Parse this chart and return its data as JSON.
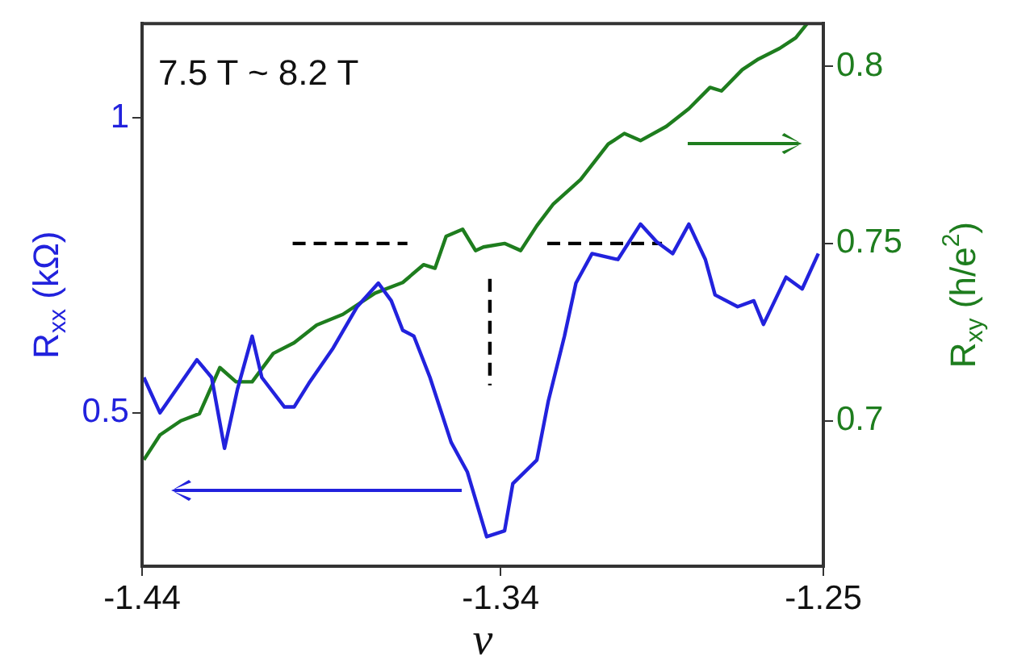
{
  "chart_data": {
    "type": "line",
    "xlabel": "ν",
    "ylabel": "R$_{xx}$ (kΩ)",
    "y2label": "R$_{xy}$ (h/e$^{2}$)",
    "annotations": [
      "7.5 T ~ 8.2 T"
    ],
    "xlim": [
      -1.44,
      -1.25
    ],
    "xticks": [
      -1.44,
      -1.34,
      -1.25
    ],
    "ylim": [
      0.24,
      1.16
    ],
    "yticks": [
      0.5,
      1
    ],
    "y2lim": [
      0.659,
      0.812
    ],
    "y2ticks": [
      0.7,
      0.75,
      0.8
    ],
    "grid": false,
    "legend": false,
    "marker": "none",
    "series": [
      {
        "color": "#2222dd",
        "x": [
          -1.4395,
          -1.435,
          -1.4247,
          -1.4206,
          -1.417,
          -1.4134,
          -1.4093,
          -1.4066,
          -1.4003,
          -1.3976,
          -1.3935,
          -1.3867,
          -1.38,
          -1.3741,
          -1.3705,
          -1.3673,
          -1.3642,
          -1.3597,
          -1.3538,
          -1.3493,
          -1.3439,
          -1.3389,
          -1.3366,
          -1.3299,
          -1.3267,
          -1.3222,
          -1.319,
          -1.3145,
          -1.3073,
          -1.301,
          -1.2965,
          -1.292,
          -1.2875,
          -1.2829,
          -1.2802,
          -1.2739,
          -1.2694,
          -1.2667,
          -1.2604,
          -1.2559,
          -1.2514
        ],
        "values": [
          0.56,
          0.5,
          0.59,
          0.56,
          0.44,
          0.54,
          0.63,
          0.56,
          0.51,
          0.51,
          0.55,
          0.61,
          0.68,
          0.72,
          0.69,
          0.64,
          0.63,
          0.56,
          0.45,
          0.4,
          0.29,
          0.3,
          0.38,
          0.42,
          0.52,
          0.63,
          0.72,
          0.77,
          0.76,
          0.82,
          0.79,
          0.77,
          0.82,
          0.76,
          0.7,
          0.68,
          0.69,
          0.65,
          0.73,
          0.71,
          0.77
        ]
      },
      {
        "color": "#1e7d1e",
        "axis": "y2",
        "x": [
          -1.4395,
          -1.435,
          -1.4292,
          -1.424,
          -1.4183,
          -1.4138,
          -1.4093,
          -1.4034,
          -1.3976,
          -1.3913,
          -1.384,
          -1.375,
          -1.3673,
          -1.3615,
          -1.3583,
          -1.3552,
          -1.3506,
          -1.347,
          -1.3448,
          -1.3389,
          -1.3344,
          -1.3299,
          -1.3254,
          -1.3177,
          -1.31,
          -1.3055,
          -1.301,
          -1.2938,
          -1.2875,
          -1.2816,
          -1.2784,
          -1.2726,
          -1.2681,
          -1.2622,
          -1.2577,
          -1.2545
        ],
        "values": [
          0.689,
          0.696,
          0.7,
          0.702,
          0.715,
          0.711,
          0.711,
          0.719,
          0.722,
          0.727,
          0.73,
          0.736,
          0.739,
          0.744,
          0.743,
          0.752,
          0.754,
          0.748,
          0.749,
          0.75,
          0.748,
          0.755,
          0.761,
          0.768,
          0.778,
          0.781,
          0.779,
          0.783,
          0.788,
          0.794,
          0.793,
          0.799,
          0.802,
          0.805,
          0.808,
          0.812
        ]
      },
      {
        "color": "#000000",
        "axis": "y2",
        "line_style": "dashed",
        "x": [
          -1.398,
          -1.366
        ],
        "values": [
          0.75,
          0.75
        ]
      },
      {
        "color": "#000000",
        "axis": "y2",
        "line_style": "dashed",
        "x": [
          -1.327,
          -1.295
        ],
        "values": [
          0.75,
          0.75
        ]
      },
      {
        "color": "#000000",
        "axis": "y2",
        "line_style": "dashed",
        "x": [
          -1.343,
          -1.343
        ],
        "values": [
          0.74,
          0.71
        ]
      }
    ]
  }
}
